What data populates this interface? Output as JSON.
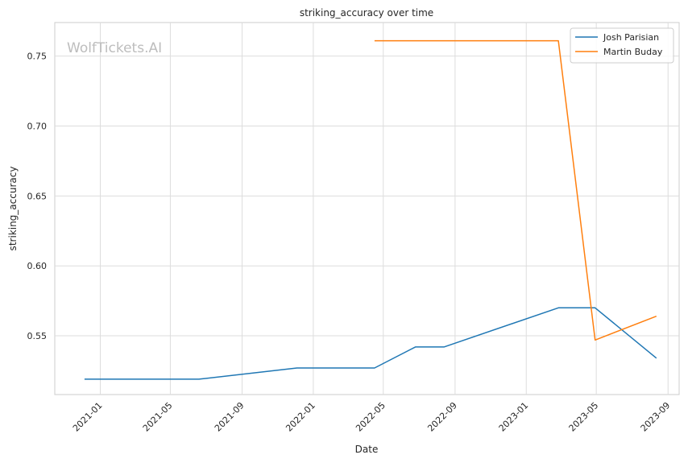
{
  "chart_data": {
    "type": "line",
    "title": "striking_accuracy over time",
    "xlabel": "Date",
    "ylabel": "striking_accuracy",
    "watermark": "WolfTickets.AI",
    "x_ticks": [
      "2021-01",
      "2021-05",
      "2021-09",
      "2022-01",
      "2022-05",
      "2022-09",
      "2023-01",
      "2023-05",
      "2023-09"
    ],
    "y_ticks": [
      "0.55",
      "0.60",
      "0.65",
      "0.70",
      "0.75"
    ],
    "xlim": [
      "2020-10-15",
      "2023-09-20"
    ],
    "ylim": [
      0.508,
      0.774
    ],
    "grid": true,
    "legend_position": "top-right",
    "series": [
      {
        "name": "Josh Parisian",
        "color": "#1f77b4",
        "points": [
          {
            "x": "2020-12-05",
            "y": 0.519
          },
          {
            "x": "2021-06-19",
            "y": 0.519
          },
          {
            "x": "2021-12-04",
            "y": 0.527
          },
          {
            "x": "2022-04-16",
            "y": 0.527
          },
          {
            "x": "2022-06-25",
            "y": 0.542
          },
          {
            "x": "2022-08-13",
            "y": 0.542
          },
          {
            "x": "2023-02-25",
            "y": 0.57
          },
          {
            "x": "2023-04-29",
            "y": 0.57
          },
          {
            "x": "2023-08-12",
            "y": 0.534
          }
        ]
      },
      {
        "name": "Martin Buday",
        "color": "#ff7f0e",
        "points": [
          {
            "x": "2022-04-16",
            "y": 0.761
          },
          {
            "x": "2023-02-25",
            "y": 0.761
          },
          {
            "x": "2023-04-29",
            "y": 0.547
          },
          {
            "x": "2023-08-12",
            "y": 0.564
          }
        ]
      }
    ]
  }
}
